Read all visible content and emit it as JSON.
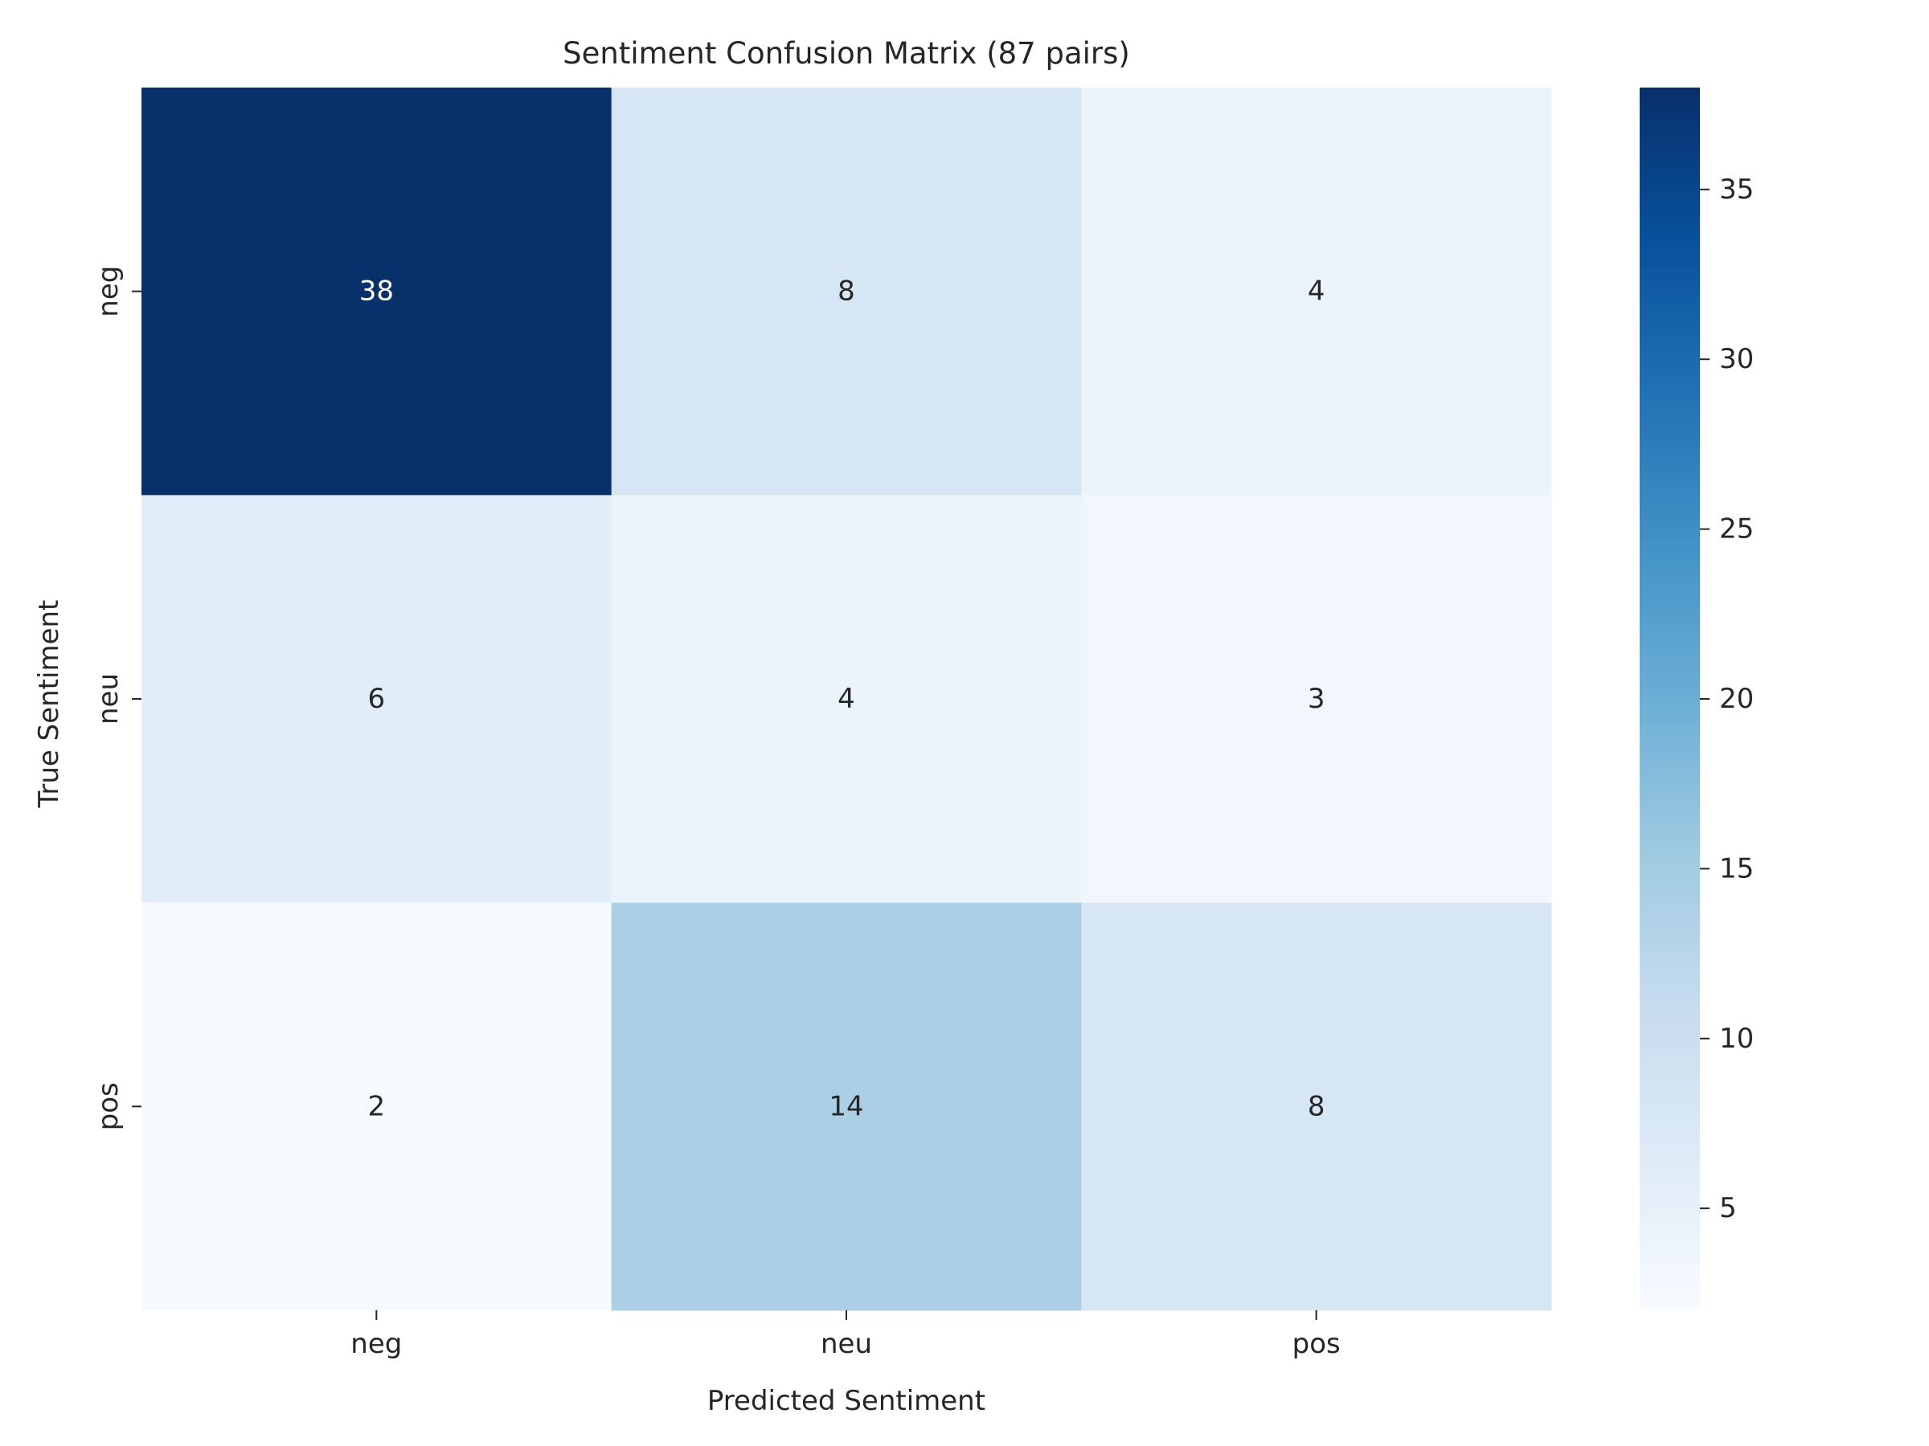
{
  "chart_data": {
    "type": "heatmap",
    "title": "Sentiment Confusion Matrix (87 pairs)",
    "xlabel": "Predicted Sentiment",
    "ylabel": "True Sentiment",
    "x_categories": [
      "neg",
      "neu",
      "pos"
    ],
    "y_categories": [
      "neg",
      "neu",
      "pos"
    ],
    "values": [
      [
        38,
        8,
        4
      ],
      [
        6,
        4,
        3
      ],
      [
        2,
        14,
        8
      ]
    ],
    "colormap": "Blues",
    "color_range": [
      2,
      38
    ],
    "colorbar_ticks": [
      5,
      10,
      15,
      20,
      25,
      30,
      35
    ],
    "annotated": true
  }
}
